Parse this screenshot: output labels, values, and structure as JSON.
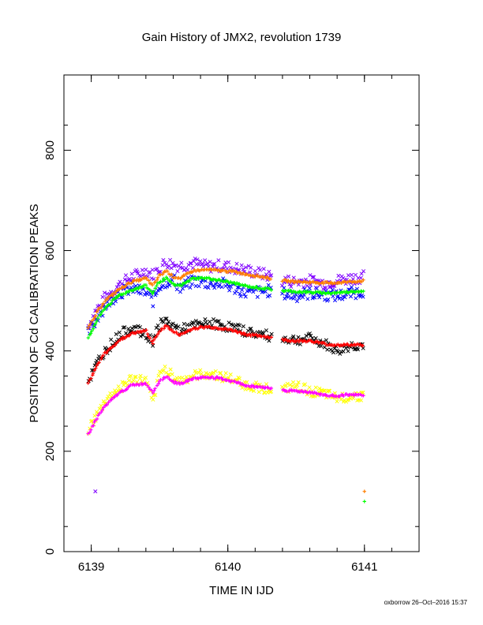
{
  "chart_data": {
    "type": "scatter",
    "title": "Gain History of JMX2, revolution 1739",
    "xlabel": "TIME IN IJD",
    "ylabel": "POSITION OF Cd CALIBRATION PEAKS",
    "xlim": [
      6138.8,
      6141.4
    ],
    "ylim": [
      0,
      950
    ],
    "xticks": [
      6139,
      6140,
      6141
    ],
    "yticks": [
      0,
      200,
      400,
      600,
      800
    ],
    "grid": false,
    "legend": "none",
    "series": [
      {
        "color": "#7f00ff",
        "marker": "x",
        "scatter": 12,
        "points": [
          [
            6138.98,
            450
          ],
          [
            6139.05,
            485
          ],
          [
            6139.1,
            505
          ],
          [
            6139.2,
            530
          ],
          [
            6139.3,
            548
          ],
          [
            6139.4,
            560
          ],
          [
            6139.45,
            552
          ],
          [
            6139.5,
            565
          ],
          [
            6139.55,
            578
          ],
          [
            6139.6,
            572
          ],
          [
            6139.65,
            570
          ],
          [
            6139.75,
            575
          ],
          [
            6139.85,
            568
          ],
          [
            6139.95,
            570
          ],
          [
            6140.05,
            565
          ],
          [
            6140.15,
            560
          ],
          [
            6140.3,
            550
          ],
          [
            6140.4,
            540
          ],
          [
            6140.5,
            538
          ],
          [
            6140.6,
            540
          ],
          [
            6140.7,
            535
          ],
          [
            6140.8,
            540
          ],
          [
            6140.9,
            545
          ],
          [
            6141.0,
            548
          ]
        ]
      },
      {
        "color": "#0000ff",
        "marker": "x",
        "scatter": 12,
        "points": [
          [
            6138.98,
            435
          ],
          [
            6139.05,
            470
          ],
          [
            6139.1,
            490
          ],
          [
            6139.2,
            515
          ],
          [
            6139.3,
            525
          ],
          [
            6139.4,
            515
          ],
          [
            6139.45,
            500
          ],
          [
            6139.5,
            530
          ],
          [
            6139.6,
            545
          ],
          [
            6139.65,
            525
          ],
          [
            6139.75,
            540
          ],
          [
            6139.85,
            535
          ],
          [
            6139.95,
            535
          ],
          [
            6140.05,
            525
          ],
          [
            6140.15,
            515
          ],
          [
            6140.3,
            520
          ],
          [
            6140.4,
            515
          ],
          [
            6140.5,
            510
          ],
          [
            6140.6,
            515
          ],
          [
            6140.7,
            512
          ],
          [
            6140.8,
            510
          ],
          [
            6140.9,
            515
          ],
          [
            6141.0,
            520
          ]
        ]
      },
      {
        "color": "#ff7f00",
        "marker": "+",
        "scatter": 2,
        "points": [
          [
            6138.98,
            445
          ],
          [
            6139.05,
            480
          ],
          [
            6139.1,
            500
          ],
          [
            6139.2,
            522
          ],
          [
            6139.3,
            538
          ],
          [
            6139.4,
            545
          ],
          [
            6139.45,
            530
          ],
          [
            6139.5,
            550
          ],
          [
            6139.55,
            560
          ],
          [
            6139.6,
            548
          ],
          [
            6139.65,
            545
          ],
          [
            6139.75,
            560
          ],
          [
            6139.85,
            562
          ],
          [
            6139.95,
            560
          ],
          [
            6140.05,
            558
          ],
          [
            6140.15,
            552
          ],
          [
            6140.25,
            548
          ],
          [
            6140.4,
            540
          ],
          [
            6140.5,
            538
          ],
          [
            6140.6,
            537
          ],
          [
            6140.75,
            535
          ],
          [
            6140.85,
            537
          ],
          [
            6141.0,
            540
          ]
        ],
        "outliers": [
          [
            6141.0,
            120
          ]
        ]
      },
      {
        "color": "#00ff00",
        "marker": "+",
        "scatter": 2,
        "points": [
          [
            6138.98,
            425
          ],
          [
            6139.05,
            465
          ],
          [
            6139.1,
            485
          ],
          [
            6139.2,
            510
          ],
          [
            6139.3,
            522
          ],
          [
            6139.4,
            530
          ],
          [
            6139.45,
            515
          ],
          [
            6139.5,
            538
          ],
          [
            6139.55,
            545
          ],
          [
            6139.6,
            532
          ],
          [
            6139.65,
            530
          ],
          [
            6139.75,
            545
          ],
          [
            6139.85,
            545
          ],
          [
            6139.95,
            540
          ],
          [
            6140.05,
            535
          ],
          [
            6140.15,
            528
          ],
          [
            6140.25,
            525
          ],
          [
            6140.4,
            520
          ],
          [
            6140.5,
            518
          ],
          [
            6140.6,
            517
          ],
          [
            6140.75,
            515
          ],
          [
            6140.85,
            517
          ],
          [
            6141.0,
            520
          ]
        ],
        "outliers": [
          [
            6141.0,
            100
          ]
        ]
      },
      {
        "color": "#000000",
        "marker": "x",
        "scatter": 10,
        "points": [
          [
            6138.98,
            340
          ],
          [
            6139.05,
            380
          ],
          [
            6139.1,
            400
          ],
          [
            6139.2,
            430
          ],
          [
            6139.3,
            448
          ],
          [
            6139.4,
            430
          ],
          [
            6139.45,
            420
          ],
          [
            6139.5,
            452
          ],
          [
            6139.55,
            460
          ],
          [
            6139.6,
            450
          ],
          [
            6139.65,
            442
          ],
          [
            6139.75,
            450
          ],
          [
            6139.85,
            455
          ],
          [
            6139.95,
            452
          ],
          [
            6140.05,
            445
          ],
          [
            6140.15,
            438
          ],
          [
            6140.3,
            430
          ],
          [
            6140.4,
            425
          ],
          [
            6140.5,
            422
          ],
          [
            6140.6,
            425
          ],
          [
            6140.7,
            415
          ],
          [
            6140.8,
            400
          ],
          [
            6140.9,
            410
          ],
          [
            6141.0,
            412
          ]
        ]
      },
      {
        "color": "#ff0000",
        "marker": "+",
        "scatter": 2,
        "points": [
          [
            6138.98,
            335
          ],
          [
            6139.05,
            375
          ],
          [
            6139.1,
            395
          ],
          [
            6139.2,
            420
          ],
          [
            6139.3,
            435
          ],
          [
            6139.4,
            440
          ],
          [
            6139.45,
            415
          ],
          [
            6139.5,
            440
          ],
          [
            6139.55,
            450
          ],
          [
            6139.6,
            438
          ],
          [
            6139.65,
            432
          ],
          [
            6139.75,
            445
          ],
          [
            6139.85,
            448
          ],
          [
            6139.95,
            445
          ],
          [
            6140.05,
            440
          ],
          [
            6140.15,
            432
          ],
          [
            6140.25,
            430
          ],
          [
            6140.4,
            422
          ],
          [
            6140.5,
            420
          ],
          [
            6140.6,
            420
          ],
          [
            6140.75,
            412
          ],
          [
            6140.85,
            412
          ],
          [
            6141.0,
            412
          ]
        ]
      },
      {
        "color": "#ffff00",
        "marker": "x",
        "scatter": 10,
        "points": [
          [
            6138.98,
            245
          ],
          [
            6139.05,
            275
          ],
          [
            6139.1,
            300
          ],
          [
            6139.2,
            325
          ],
          [
            6139.3,
            345
          ],
          [
            6139.4,
            340
          ],
          [
            6139.45,
            295
          ],
          [
            6139.5,
            355
          ],
          [
            6139.55,
            365
          ],
          [
            6139.6,
            350
          ],
          [
            6139.65,
            340
          ],
          [
            6139.75,
            350
          ],
          [
            6139.85,
            355
          ],
          [
            6139.95,
            350
          ],
          [
            6140.05,
            342
          ],
          [
            6140.15,
            330
          ],
          [
            6140.3,
            325
          ],
          [
            6140.4,
            322
          ],
          [
            6140.5,
            330
          ],
          [
            6140.6,
            320
          ],
          [
            6140.7,
            315
          ],
          [
            6140.8,
            305
          ],
          [
            6140.9,
            310
          ],
          [
            6141.0,
            312
          ]
        ]
      },
      {
        "color": "#ff00ff",
        "marker": "+",
        "scatter": 2,
        "points": [
          [
            6138.98,
            235
          ],
          [
            6139.05,
            270
          ],
          [
            6139.1,
            290
          ],
          [
            6139.2,
            315
          ],
          [
            6139.3,
            332
          ],
          [
            6139.4,
            335
          ],
          [
            6139.45,
            318
          ],
          [
            6139.5,
            340
          ],
          [
            6139.55,
            350
          ],
          [
            6139.6,
            338
          ],
          [
            6139.65,
            335
          ],
          [
            6139.75,
            345
          ],
          [
            6139.85,
            348
          ],
          [
            6139.95,
            345
          ],
          [
            6140.05,
            338
          ],
          [
            6140.15,
            330
          ],
          [
            6140.25,
            328
          ],
          [
            6140.4,
            322
          ],
          [
            6140.5,
            320
          ],
          [
            6140.6,
            318
          ],
          [
            6140.75,
            310
          ],
          [
            6140.85,
            312
          ],
          [
            6141.0,
            312
          ]
        ]
      },
      {
        "color": "#7f00ff",
        "marker": "x",
        "scatter": 0,
        "points": [],
        "outliers": [
          [
            6139.03,
            120
          ]
        ]
      }
    ]
  },
  "footer": "oxborrow 26–Oct–2016 15:37"
}
